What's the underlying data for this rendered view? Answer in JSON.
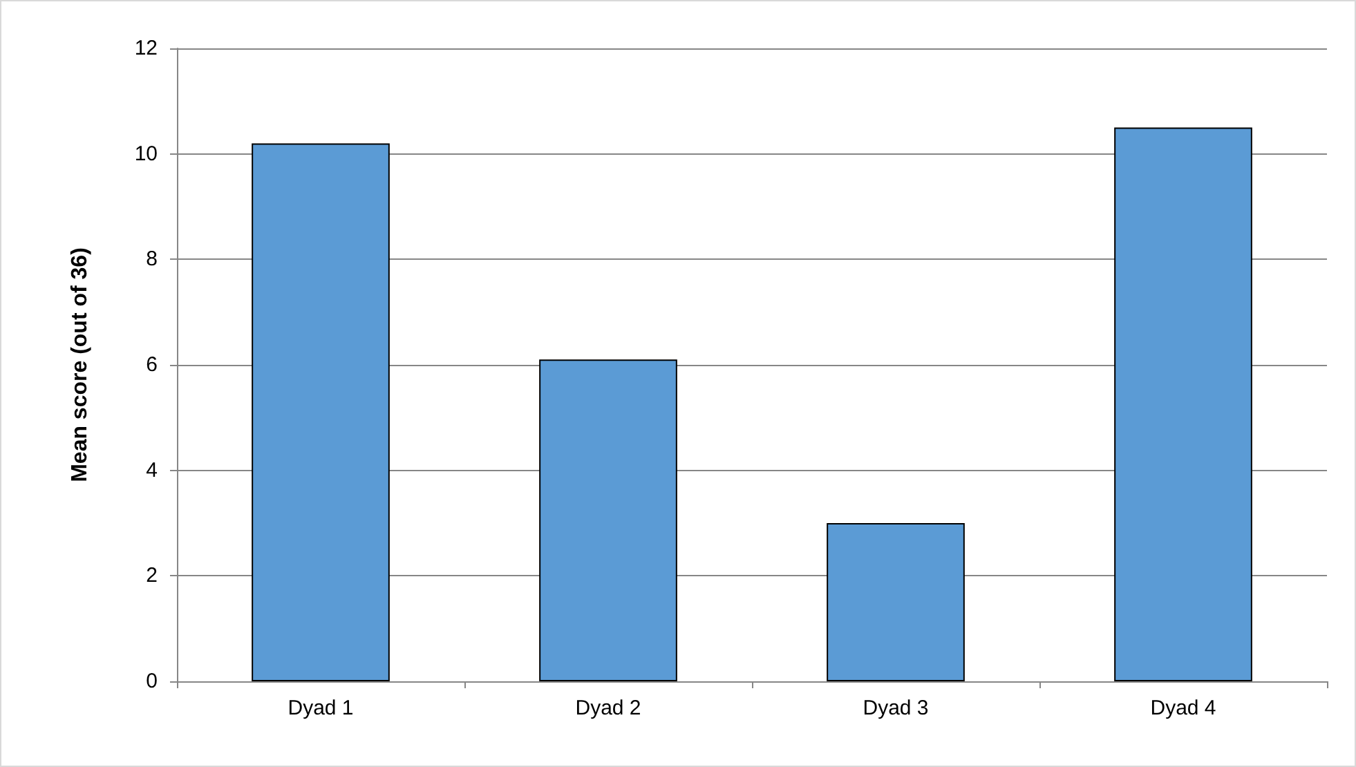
{
  "chart_data": {
    "type": "bar",
    "ylabel": "Mean score (out of 36)",
    "categories": [
      "Dyad 1",
      "Dyad 2",
      "Dyad 3",
      "Dyad 4"
    ],
    "values": [
      10.2,
      6.1,
      3.0,
      10.5
    ],
    "color": "#5b9bd5",
    "ylim": [
      0,
      12
    ],
    "yticks": [
      0,
      2,
      4,
      6,
      8,
      10,
      12
    ],
    "grid": "y"
  }
}
